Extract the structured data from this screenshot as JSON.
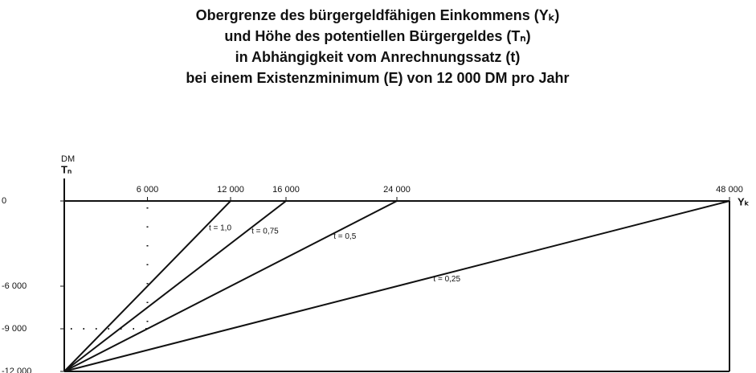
{
  "chart_data": {
    "type": "line",
    "title": [
      "Obergrenze des bürgergeldfähigen Einkommens (Yₖ)",
      "und Höhe des potentiellen Bürgergeldes (Tₙ)",
      "in Abhängigkeit vom Anrechnungssatz (t)",
      "bei einem Existenzminimum (E) von 12 000 DM pro Jahr"
    ],
    "y_label": [
      "DM",
      "Tₙ"
    ],
    "x_label": "Yₖ",
    "xlim": [
      0,
      48000
    ],
    "ylim": [
      -12000,
      0
    ],
    "xticks": [
      {
        "value": 6000,
        "label": "6 000"
      },
      {
        "value": 12000,
        "label": "12 000"
      },
      {
        "value": 16000,
        "label": "16 000"
      },
      {
        "value": 24000,
        "label": "24 000"
      },
      {
        "value": 48000,
        "label": "48 000"
      }
    ],
    "yticks": [
      0,
      {
        "value": -6000,
        "label": "-6 000"
      },
      {
        "value": -9000,
        "label": "-9 000"
      },
      {
        "value": -12000,
        "label": "-12 000"
      }
    ],
    "color": "#111111",
    "series": [
      {
        "name": "t = 1,0",
        "x": [
          0,
          12000
        ],
        "values": [
          -12000,
          0
        ]
      },
      {
        "name": "t = 0,75",
        "x": [
          0,
          16000
        ],
        "values": [
          -12000,
          0
        ]
      },
      {
        "name": "t = 0,5",
        "x": [
          0,
          24000
        ],
        "values": [
          -12000,
          0
        ]
      },
      {
        "name": "t = 0,25",
        "x": [
          0,
          48000
        ],
        "values": [
          -12000,
          0
        ]
      }
    ]
  }
}
